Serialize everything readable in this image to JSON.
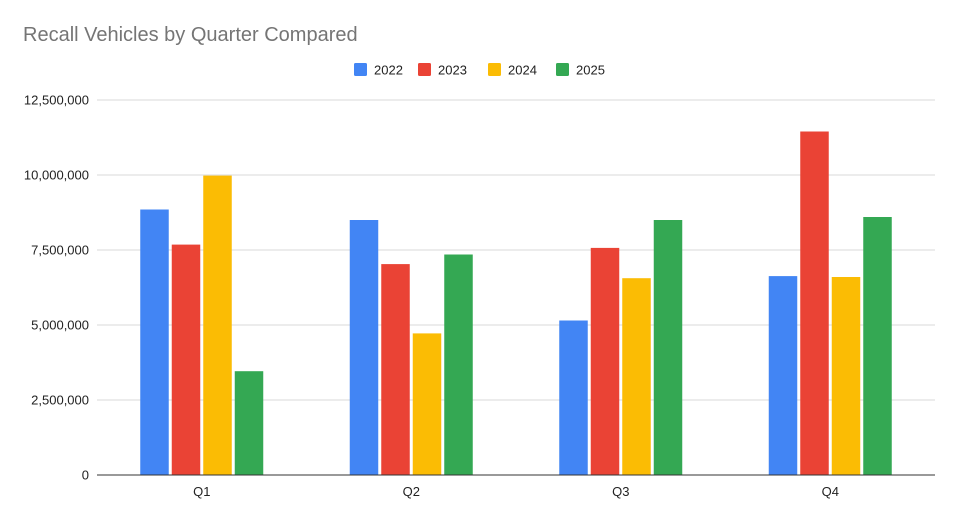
{
  "chart_data": {
    "type": "bar",
    "title": "Recall Vehicles by Quarter Compared",
    "xlabel": "",
    "ylabel": "",
    "categories": [
      "Q1",
      "Q2",
      "Q3",
      "Q4"
    ],
    "series": [
      {
        "name": "2022",
        "color": "#4285F4",
        "values": [
          8850000,
          8500000,
          5150000,
          6630000
        ]
      },
      {
        "name": "2023",
        "color": "#EA4335",
        "values": [
          7680000,
          7030000,
          7570000,
          11450000
        ]
      },
      {
        "name": "2024",
        "color": "#FBBC04",
        "values": [
          9980000,
          4720000,
          6560000,
          6600000
        ]
      },
      {
        "name": "2025",
        "color": "#34A853",
        "values": [
          3460000,
          7350000,
          8500000,
          8600000
        ]
      }
    ],
    "ylim": [
      0,
      12500000
    ],
    "yticks": [
      0,
      2500000,
      5000000,
      7500000,
      10000000,
      12500000
    ],
    "ytick_labels": [
      "0",
      "2,500,000",
      "5,000,000",
      "7,500,000",
      "10,000,000",
      "12,500,000"
    ],
    "grid": true,
    "legend_position": "top-center"
  }
}
